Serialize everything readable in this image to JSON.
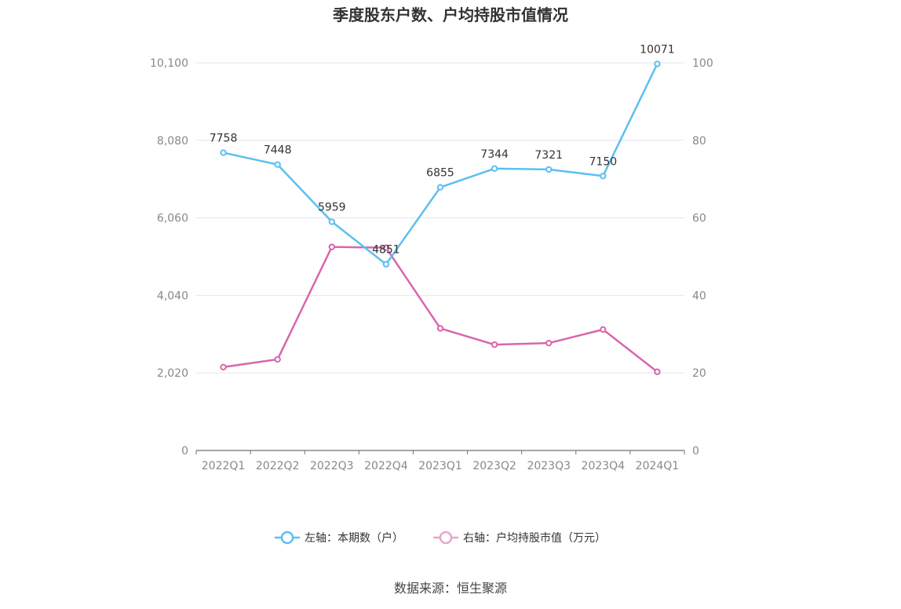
{
  "chart_data": {
    "type": "line",
    "title": "季度股东户数、户均持股市值情况",
    "categories": [
      "2022Q1",
      "2022Q2",
      "2022Q3",
      "2022Q4",
      "2023Q1",
      "2023Q2",
      "2023Q3",
      "2023Q4",
      "2024Q1"
    ],
    "series": [
      {
        "name": "左轴：本期数（户）",
        "axis": "left",
        "color": "#5bc0f0",
        "values": [
          7758,
          7448,
          5959,
          4851,
          6855,
          7344,
          7321,
          7150,
          10071
        ],
        "data_labels": [
          "7758",
          "7448",
          "5959",
          "4851",
          "6855",
          "7344",
          "7321",
          "7150",
          "10071"
        ]
      },
      {
        "name": "右轴：户均持股市值（万元）",
        "axis": "right",
        "color": "#d966ad",
        "values": [
          21.5,
          23.5,
          52.5,
          52.3,
          31.5,
          27.3,
          27.7,
          31.2,
          20.3
        ]
      }
    ],
    "left_axis": {
      "ylim": [
        0,
        10100
      ],
      "ticks": [
        0,
        2020,
        4040,
        6060,
        8080,
        10100
      ],
      "tick_labels": [
        "0",
        "2,020",
        "4,040",
        "6,060",
        "8,080",
        "10,100"
      ]
    },
    "right_axis": {
      "ylim": [
        0,
        100
      ],
      "ticks": [
        0,
        20,
        40,
        60,
        80,
        100
      ],
      "tick_labels": [
        "0",
        "20",
        "40",
        "60",
        "80",
        "100"
      ]
    },
    "grid": true,
    "legend_position": "bottom"
  },
  "source_text": "数据来源：恒生聚源"
}
